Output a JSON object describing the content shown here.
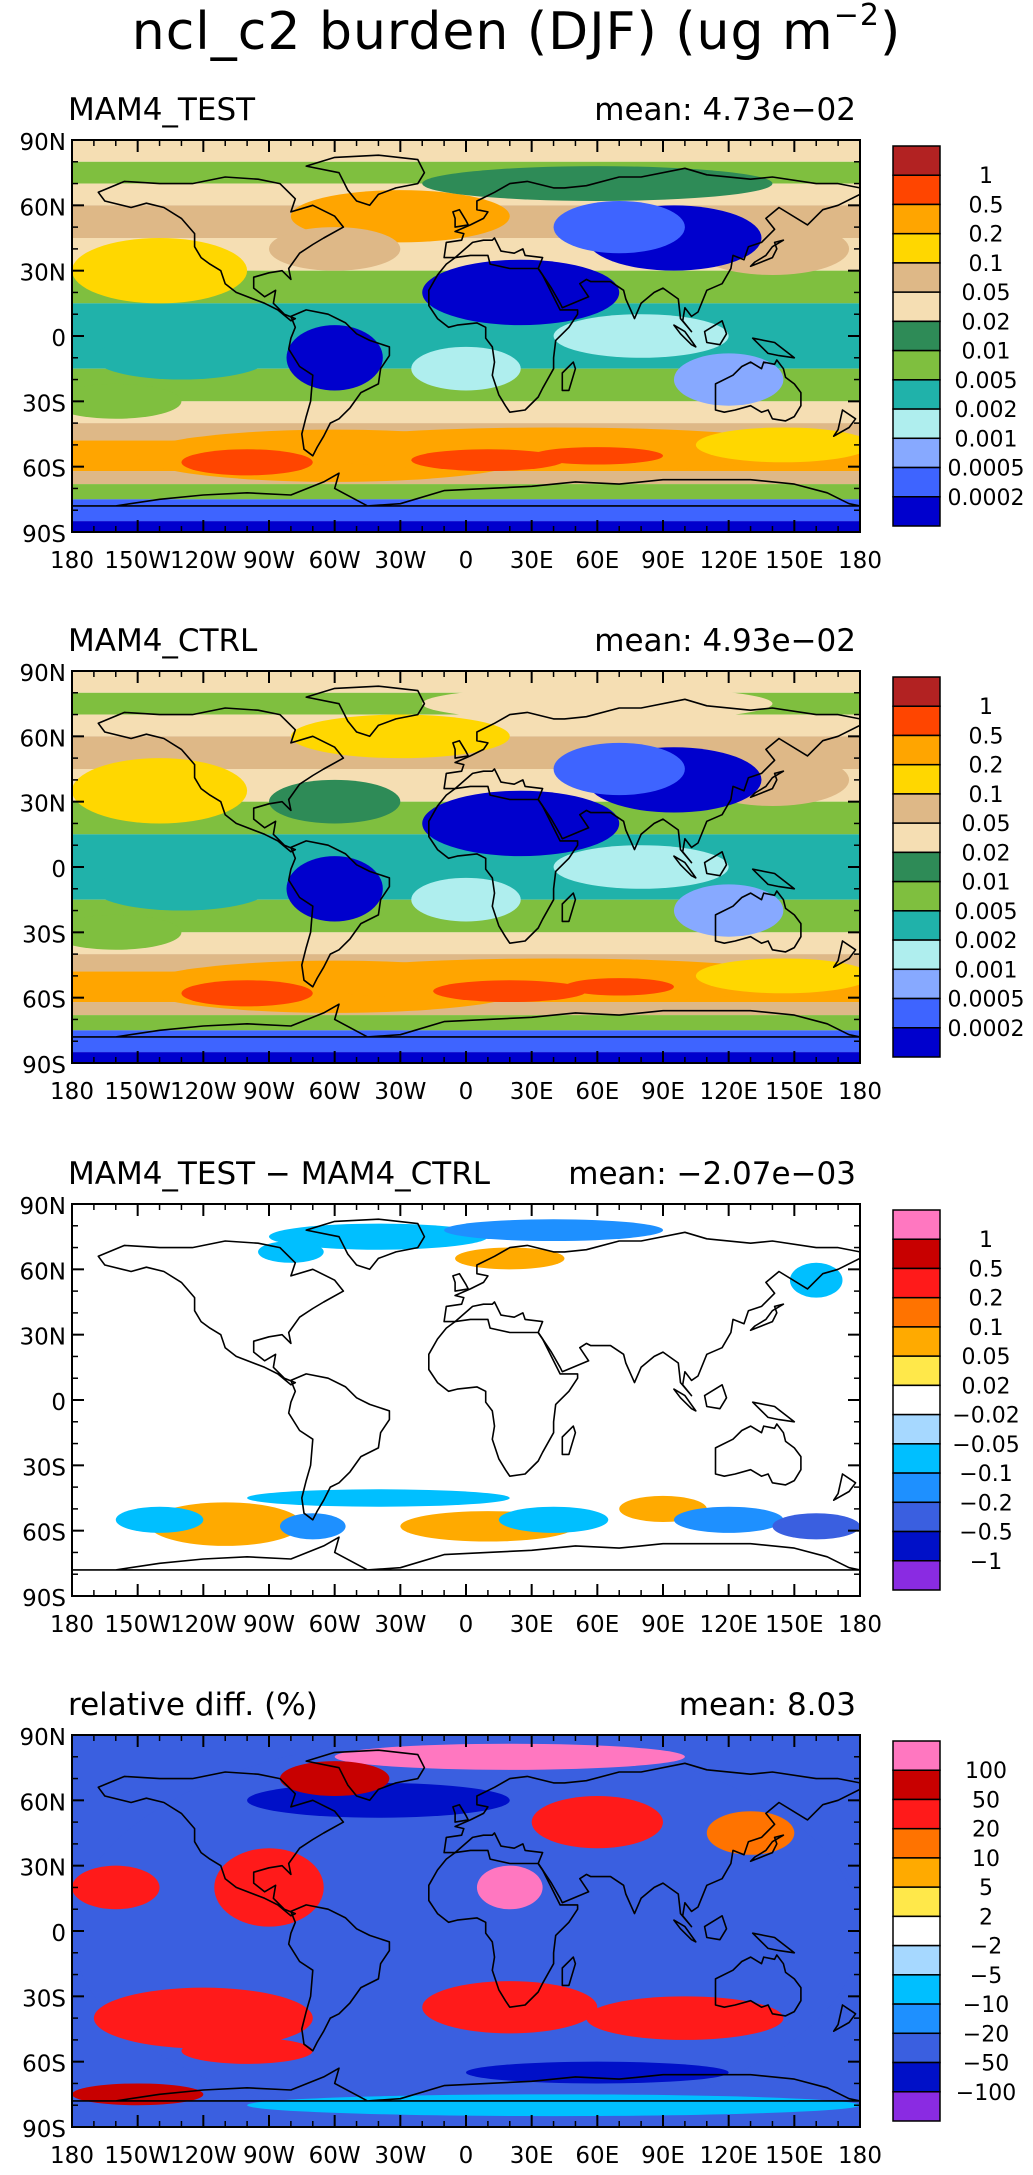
{
  "title": {
    "main": "ncl_c2 burden (DJF) (ug m",
    "sup": "−2",
    "close": ")"
  },
  "lat_ticks": [
    "90N",
    "60N",
    "30N",
    "0",
    "30S",
    "60S",
    "90S"
  ],
  "lon_ticks": [
    "180",
    "150W",
    "120W",
    "90W",
    "60W",
    "30W",
    "0",
    "30E",
    "60E",
    "90E",
    "120E",
    "150E",
    "180"
  ],
  "chart_data": [
    {
      "type": "heatmap",
      "panel_title": "MAM4_TEST",
      "mean_label": "mean:  4.73e−02",
      "colorbar": {
        "labels": [
          "1",
          "0.5",
          "0.2",
          "0.1",
          "0.05",
          "0.02",
          "0.01",
          "0.005",
          "0.002",
          "0.001",
          "0.0005",
          "0.0002"
        ],
        "colors": [
          "#b22222",
          "#ff4500",
          "#ffa500",
          "#ffd700",
          "#deb887",
          "#f5deb3",
          "#2e8b57",
          "#7fbf3f",
          "#20b2aa",
          "#afeeee",
          "#87a9ff",
          "#3e64ff",
          "#0000cd"
        ]
      }
    },
    {
      "type": "heatmap",
      "panel_title": "MAM4_CTRL",
      "mean_label": "mean:  4.93e−02",
      "colorbar": {
        "labels": [
          "1",
          "0.5",
          "0.2",
          "0.1",
          "0.05",
          "0.02",
          "0.01",
          "0.005",
          "0.002",
          "0.001",
          "0.0005",
          "0.0002"
        ],
        "colors": [
          "#b22222",
          "#ff4500",
          "#ffa500",
          "#ffd700",
          "#deb887",
          "#f5deb3",
          "#2e8b57",
          "#7fbf3f",
          "#20b2aa",
          "#afeeee",
          "#87a9ff",
          "#3e64ff",
          "#0000cd"
        ]
      }
    },
    {
      "type": "heatmap",
      "panel_title": "MAM4_TEST − MAM4_CTRL",
      "mean_label": "mean:  −2.07e−03",
      "colorbar": {
        "labels": [
          "1",
          "0.5",
          "0.2",
          "0.1",
          "0.05",
          "0.02",
          "−0.02",
          "−0.05",
          "−0.1",
          "−0.2",
          "−0.5",
          "−1"
        ],
        "colors": [
          "#ff77c0",
          "#c80000",
          "#ff1a1a",
          "#ff7300",
          "#ffaa00",
          "#ffe84a",
          "#ffffff",
          "#a6d8ff",
          "#00bfff",
          "#1e90ff",
          "#3a5fe0",
          "#0010c8",
          "#8a2be2"
        ]
      }
    },
    {
      "type": "heatmap",
      "panel_title": "relative diff. (%)",
      "mean_label": "mean:   8.03",
      "colorbar": {
        "labels": [
          "100",
          "50",
          "20",
          "10",
          "5",
          "2",
          "−2",
          "−5",
          "−10",
          "−20",
          "−50",
          "−100"
        ],
        "colors": [
          "#ff77c0",
          "#c80000",
          "#ff1a1a",
          "#ff7300",
          "#ffaa00",
          "#ffe84a",
          "#ffffff",
          "#a6d8ff",
          "#00bfff",
          "#1e90ff",
          "#3a5fe0",
          "#0010c8",
          "#8a2be2"
        ]
      }
    }
  ]
}
